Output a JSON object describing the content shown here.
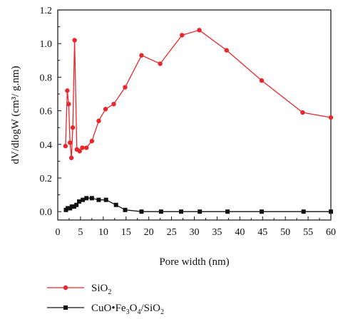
{
  "chart_data": {
    "type": "line",
    "title": "",
    "xlabel": "Pore width (nm)",
    "ylabel": "dV/dlogW (cm³/ g.nm)",
    "xlim": [
      0,
      60
    ],
    "ylim": [
      -0.05,
      1.2
    ],
    "x_ticks": [
      "0",
      "5",
      "10",
      "15",
      "20",
      "25",
      "30",
      "35",
      "40",
      "45",
      "50",
      "55",
      "60"
    ],
    "y_ticks": [
      "0.0",
      "0.2",
      "0.4",
      "0.6",
      "0.8",
      "1.0",
      "1.2"
    ],
    "grid": false,
    "legend_position": "bottom-left",
    "series": [
      {
        "name": "SiO2",
        "color": "#e8262b",
        "marker": "circle",
        "points": [
          [
            1.7,
            0.39
          ],
          [
            2.1,
            0.72
          ],
          [
            2.4,
            0.64
          ],
          [
            2.7,
            0.41
          ],
          [
            3.0,
            0.32
          ],
          [
            3.3,
            0.5
          ],
          [
            3.7,
            1.02
          ],
          [
            4.2,
            0.37
          ],
          [
            4.8,
            0.36
          ],
          [
            5.4,
            0.38
          ],
          [
            6.3,
            0.38
          ],
          [
            7.5,
            0.42
          ],
          [
            9.0,
            0.54
          ],
          [
            10.5,
            0.61
          ],
          [
            12.3,
            0.64
          ],
          [
            14.8,
            0.74
          ],
          [
            18.4,
            0.93
          ],
          [
            22.5,
            0.88
          ],
          [
            27.3,
            1.05
          ],
          [
            31.1,
            1.08
          ],
          [
            37.1,
            0.96
          ],
          [
            44.8,
            0.78
          ],
          [
            53.8,
            0.59
          ],
          [
            60.0,
            0.56
          ]
        ]
      },
      {
        "name": "CuO•Fe3O4/SiO2",
        "color": "#111111",
        "marker": "square",
        "points": [
          [
            1.8,
            0.01
          ],
          [
            2.2,
            0.02
          ],
          [
            2.7,
            0.02
          ],
          [
            3.1,
            0.03
          ],
          [
            3.6,
            0.03
          ],
          [
            4.1,
            0.04
          ],
          [
            4.7,
            0.06
          ],
          [
            5.5,
            0.07
          ],
          [
            6.3,
            0.08
          ],
          [
            7.5,
            0.08
          ],
          [
            9.0,
            0.07
          ],
          [
            10.6,
            0.07
          ],
          [
            12.8,
            0.04
          ],
          [
            14.8,
            0.01
          ],
          [
            18.4,
            0.0
          ],
          [
            22.7,
            0.0
          ],
          [
            27.1,
            0.0
          ],
          [
            31.2,
            0.0
          ],
          [
            37.3,
            0.0
          ],
          [
            44.8,
            0.0
          ],
          [
            54.0,
            0.0
          ],
          [
            60.0,
            0.0
          ]
        ]
      }
    ],
    "legend": {
      "entries": [
        {
          "prefix": "SiO",
          "sub": "2",
          "rest": ""
        },
        {
          "prefix": "CuO•Fe",
          "sub": "3",
          "mid": "O",
          "sub2": "4",
          "rest": "/SiO",
          "sub3": "2"
        }
      ]
    }
  }
}
